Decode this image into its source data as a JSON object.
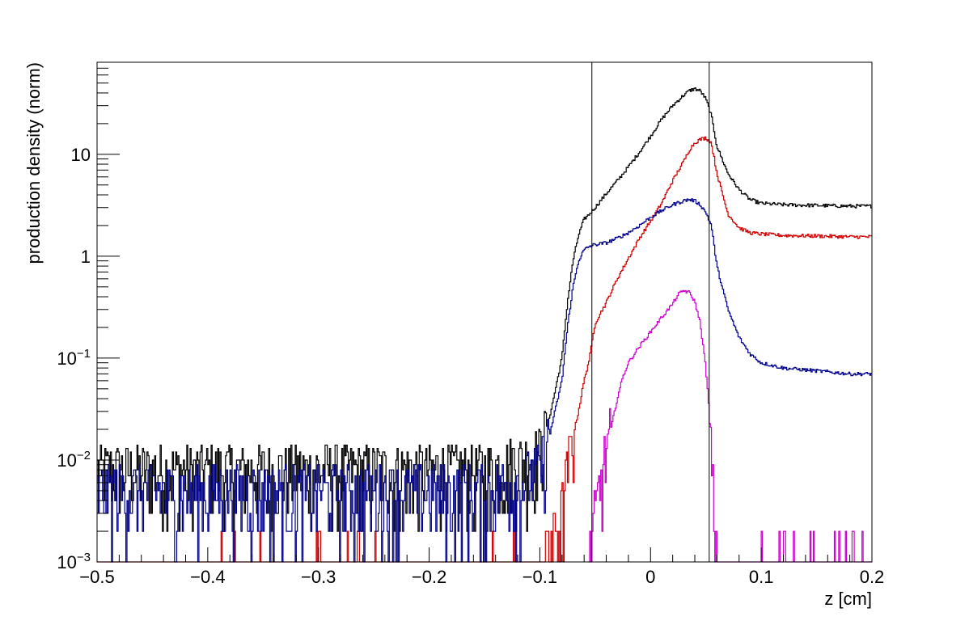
{
  "chart_data": {
    "type": "line",
    "style": "step histogram",
    "xlabel": "z [cm]",
    "ylabel": "production density (norm)",
    "xlim": [
      -0.5,
      0.2
    ],
    "ylim": [
      0.001,
      80
    ],
    "yscale": "log",
    "grid": false,
    "legend": "none",
    "x_tick_labels": [
      "−0.5",
      "−0.4",
      "−0.3",
      "−0.2",
      "−0.1",
      "0",
      "0.1",
      "0.2"
    ],
    "x_tick_values": [
      -0.5,
      -0.4,
      -0.3,
      -0.2,
      -0.1,
      0,
      0.1,
      0.2
    ],
    "y_tick_values": [
      0.001,
      0.01,
      0.1,
      1,
      10
    ],
    "y_tick_labels": [
      {
        "base": "10",
        "exp": "−3"
      },
      {
        "base": "10",
        "exp": "−2"
      },
      {
        "base": "10",
        "exp": "−1"
      },
      {
        "base": "1",
        "exp": ""
      },
      {
        "base": "10",
        "exp": ""
      }
    ],
    "vertical_lines": [
      -0.053,
      0.053
    ],
    "series": [
      {
        "color": "#000000",
        "x": [
          -0.5,
          -0.45,
          -0.4,
          -0.35,
          -0.3,
          -0.25,
          -0.2,
          -0.15,
          -0.12,
          -0.1,
          -0.09,
          -0.08,
          -0.075,
          -0.07,
          -0.065,
          -0.06,
          -0.055,
          -0.05,
          -0.04,
          -0.03,
          -0.02,
          -0.01,
          0,
          0.01,
          0.02,
          0.03,
          0.035,
          0.04,
          0.045,
          0.05,
          0.055,
          0.06,
          0.07,
          0.08,
          0.09,
          0.1,
          0.12,
          0.15,
          0.18,
          0.2
        ],
        "y": [
          0.008,
          0.008,
          0.008,
          0.008,
          0.008,
          0.008,
          0.008,
          0.008,
          0.01,
          0.012,
          0.03,
          0.1,
          0.35,
          0.9,
          1.6,
          2.3,
          2.6,
          3.0,
          4.1,
          5.5,
          7.5,
          10.5,
          15,
          22,
          30,
          38,
          42,
          44,
          42,
          35,
          24,
          12,
          6.5,
          4.5,
          3.6,
          3.3,
          3.2,
          3.15,
          3.1,
          3.1
        ]
      },
      {
        "color": "#cc0000",
        "x": [
          -0.5,
          -0.45,
          -0.4,
          -0.35,
          -0.3,
          -0.25,
          -0.2,
          -0.15,
          -0.12,
          -0.1,
          -0.09,
          -0.08,
          -0.075,
          -0.07,
          -0.065,
          -0.06,
          -0.055,
          -0.05,
          -0.04,
          -0.03,
          -0.02,
          -0.01,
          0,
          0.01,
          0.02,
          0.03,
          0.035,
          0.04,
          0.045,
          0.05,
          0.055,
          0.06,
          0.07,
          0.08,
          0.09,
          0.1,
          0.12,
          0.15,
          0.18,
          0.2
        ],
        "y": [
          0.001,
          0.001,
          0.001,
          0.001,
          0.001,
          0.001,
          0.001,
          0.001,
          0.001,
          0.001,
          0.0015,
          0.003,
          0.008,
          0.017,
          0.03,
          0.06,
          0.1,
          0.22,
          0.35,
          0.6,
          0.95,
          1.5,
          2.2,
          3.3,
          5.5,
          8.5,
          11,
          13,
          14,
          14.5,
          13,
          6.5,
          2.6,
          1.9,
          1.7,
          1.65,
          1.6,
          1.58,
          1.55,
          1.55
        ]
      },
      {
        "color": "#00008b",
        "x": [
          -0.5,
          -0.45,
          -0.4,
          -0.35,
          -0.3,
          -0.25,
          -0.2,
          -0.15,
          -0.12,
          -0.1,
          -0.09,
          -0.08,
          -0.075,
          -0.07,
          -0.065,
          -0.06,
          -0.055,
          -0.05,
          -0.04,
          -0.03,
          -0.02,
          -0.01,
          0,
          0.01,
          0.02,
          0.03,
          0.035,
          0.04,
          0.045,
          0.05,
          0.055,
          0.06,
          0.07,
          0.08,
          0.09,
          0.1,
          0.12,
          0.15,
          0.18,
          0.2
        ],
        "y": [
          0.005,
          0.005,
          0.005,
          0.005,
          0.005,
          0.005,
          0.005,
          0.005,
          0.006,
          0.008,
          0.02,
          0.06,
          0.2,
          0.5,
          0.9,
          1.15,
          1.25,
          1.3,
          1.35,
          1.5,
          1.7,
          2.0,
          2.4,
          2.8,
          3.2,
          3.5,
          3.6,
          3.5,
          3.2,
          2.7,
          2.0,
          0.8,
          0.3,
          0.16,
          0.11,
          0.09,
          0.08,
          0.075,
          0.07,
          0.07
        ]
      },
      {
        "color": "#cc00cc",
        "x": [
          -0.056,
          -0.055,
          -0.05,
          -0.045,
          -0.04,
          -0.035,
          -0.03,
          -0.025,
          -0.02,
          -0.01,
          0,
          0.01,
          0.02,
          0.025,
          0.03,
          0.035,
          0.04,
          0.045,
          0.05,
          0.053,
          0.055,
          0.06,
          0.07,
          0.08,
          0.09,
          0.1,
          0.15,
          0.2
        ],
        "y": [
          0.001,
          0.001,
          0.003,
          0.006,
          0.012,
          0.022,
          0.04,
          0.065,
          0.09,
          0.13,
          0.18,
          0.25,
          0.34,
          0.42,
          0.46,
          0.44,
          0.36,
          0.22,
          0.08,
          0.03,
          0.01,
          0.001,
          0.001,
          0.001,
          0.001,
          0.001,
          0.001,
          0.001
        ]
      }
    ]
  }
}
